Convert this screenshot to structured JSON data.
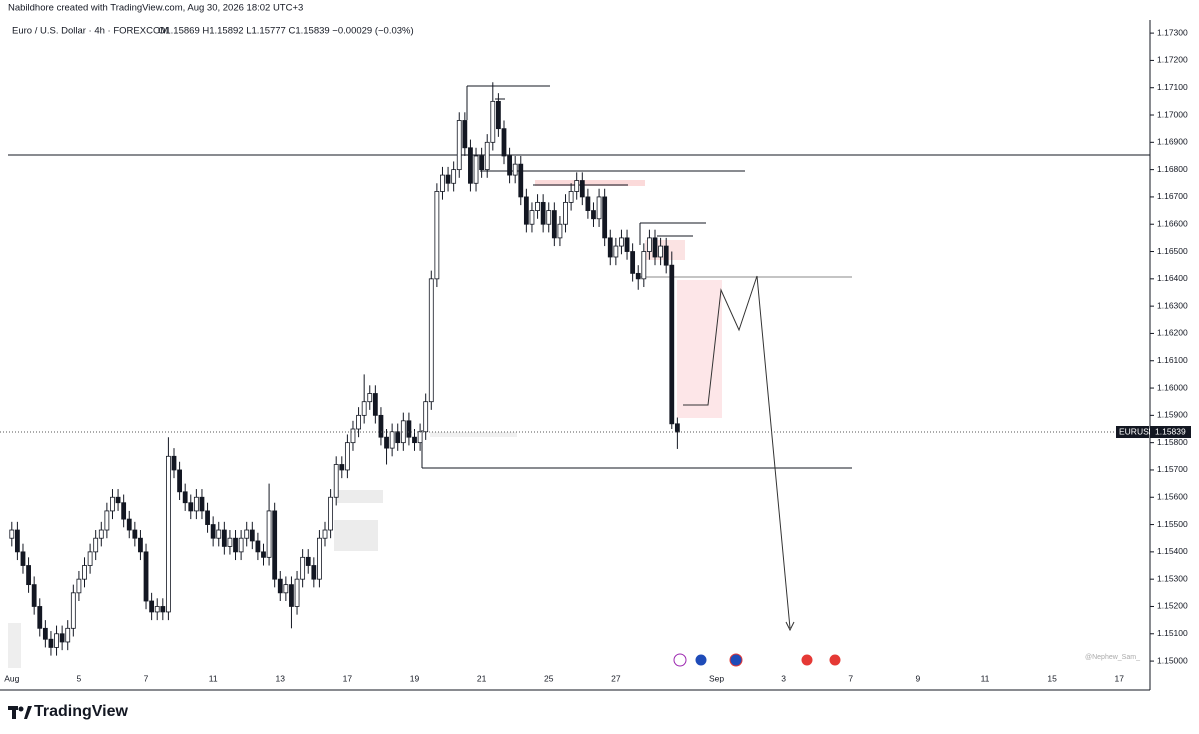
{
  "chart_data": {
    "type": "candlestick",
    "credit": "Nabildhore created with TradingView.com, Aug 30, 2026 18:02 UTC+3",
    "title": "Euro / U.S. Dollar · 4h · FOREXCOM",
    "subtitle": "O1.15869 H1.15892 L1.15777 C1.15839 −0.00029 (−0.03%)",
    "watermark": "@Nephew_Sam_",
    "brand": "TradingView",
    "symbol": "EURUSD",
    "last_price": 1.15839,
    "up_color": "#ffffff",
    "down_color": "#131722",
    "border_color": "#131722",
    "ylim": [
      1.1496,
      1.17348
    ],
    "yticks": [
      {
        "value": 1.15,
        "label": "1.15000"
      },
      {
        "value": 1.151,
        "label": "1.15100"
      },
      {
        "value": 1.152,
        "label": "1.15200"
      },
      {
        "value": 1.153,
        "label": "1.15300"
      },
      {
        "value": 1.154,
        "label": "1.15400"
      },
      {
        "value": 1.155,
        "label": "1.15500"
      },
      {
        "value": 1.156,
        "label": "1.15600"
      },
      {
        "value": 1.157,
        "label": "1.15700"
      },
      {
        "value": 1.158,
        "label": "1.15800"
      },
      {
        "value": 1.159,
        "label": "1.15900"
      },
      {
        "value": 1.16,
        "label": "1.16000"
      },
      {
        "value": 1.161,
        "label": "1.16100"
      },
      {
        "value": 1.162,
        "label": "1.16200"
      },
      {
        "value": 1.163,
        "label": "1.16300"
      },
      {
        "value": 1.164,
        "label": "1.16400"
      },
      {
        "value": 1.165,
        "label": "1.16500"
      },
      {
        "value": 1.166,
        "label": "1.16600"
      },
      {
        "value": 1.167,
        "label": "1.16700"
      },
      {
        "value": 1.168,
        "label": "1.16800"
      },
      {
        "value": 1.169,
        "label": "1.16900"
      },
      {
        "value": 1.17,
        "label": "1.17000"
      },
      {
        "value": 1.171,
        "label": "1.17100"
      },
      {
        "value": 1.172,
        "label": "1.17200"
      },
      {
        "value": 1.173,
        "label": "1.17300"
      }
    ],
    "categories": [
      "Aug",
      null,
      null,
      null,
      null,
      null,
      null,
      null,
      null,
      null,
      null,
      null,
      "5",
      null,
      null,
      null,
      null,
      null,
      null,
      null,
      null,
      null,
      null,
      null,
      "7",
      null,
      null,
      null,
      null,
      null,
      null,
      null,
      null,
      null,
      null,
      null,
      "11",
      null,
      null,
      null,
      null,
      null,
      null,
      null,
      null,
      null,
      null,
      null,
      "13",
      null,
      null,
      null,
      null,
      null,
      null,
      null,
      null,
      null,
      null,
      null,
      "17",
      null,
      null,
      null,
      null,
      null,
      null,
      null,
      null,
      null,
      null,
      null,
      "19",
      null,
      null,
      null,
      null,
      null,
      null,
      null,
      null,
      null,
      null,
      null,
      "21",
      null,
      null,
      null,
      null,
      null,
      null,
      null,
      null,
      null,
      null,
      null,
      "25",
      null,
      null,
      null,
      null,
      null,
      null,
      null,
      null,
      null,
      null,
      null,
      "27",
      null,
      null,
      null,
      null,
      null,
      null,
      null,
      null,
      null,
      null,
      null,
      null,
      null,
      null,
      null,
      null,
      null,
      "Sep",
      null,
      null,
      null,
      null,
      null,
      null,
      null,
      null,
      null,
      null,
      null,
      "3",
      null,
      null,
      null,
      null,
      null,
      null,
      null,
      null,
      null,
      null,
      null,
      "7",
      null,
      null,
      null,
      null,
      null,
      null,
      null,
      null,
      null,
      null,
      null,
      "9",
      null,
      null,
      null,
      null,
      null,
      null,
      null,
      null,
      null,
      null,
      null,
      "11",
      null,
      null,
      null,
      null,
      null,
      null,
      null,
      null,
      null,
      null,
      null,
      "15",
      null,
      null,
      null,
      null,
      null,
      null,
      null,
      null,
      null,
      null,
      null,
      "17",
      null,
      null,
      null,
      null,
      null
    ],
    "candles": [
      [
        1.1545,
        1.1551,
        1.1542,
        1.1548
      ],
      [
        1.1548,
        1.1551,
        1.1537,
        1.154
      ],
      [
        1.154,
        1.1543,
        1.1532,
        1.1535
      ],
      [
        1.1535,
        1.1538,
        1.1525,
        1.1528
      ],
      [
        1.1528,
        1.1531,
        1.1517,
        1.152
      ],
      [
        1.152,
        1.1523,
        1.1509,
        1.1512
      ],
      [
        1.1512,
        1.1515,
        1.1505,
        1.1508
      ],
      [
        1.1508,
        1.1511,
        1.1502,
        1.1505
      ],
      [
        1.1505,
        1.1513,
        1.1502,
        1.151
      ],
      [
        1.151,
        1.1513,
        1.1504,
        1.1507
      ],
      [
        1.1507,
        1.1515,
        1.1504,
        1.1512
      ],
      [
        1.1512,
        1.1528,
        1.1509,
        1.1525
      ],
      [
        1.1525,
        1.1533,
        1.1522,
        1.153
      ],
      [
        1.153,
        1.1538,
        1.1527,
        1.1535
      ],
      [
        1.1535,
        1.1543,
        1.1532,
        1.154
      ],
      [
        1.154,
        1.1548,
        1.1537,
        1.1545
      ],
      [
        1.1545,
        1.1551,
        1.1542,
        1.1548
      ],
      [
        1.1548,
        1.1558,
        1.1545,
        1.1555
      ],
      [
        1.1555,
        1.1563,
        1.1552,
        1.156
      ],
      [
        1.156,
        1.1563,
        1.1555,
        1.1558
      ],
      [
        1.1558,
        1.1561,
        1.1549,
        1.1552
      ],
      [
        1.1552,
        1.1555,
        1.1545,
        1.1548
      ],
      [
        1.1548,
        1.1551,
        1.1542,
        1.1545
      ],
      [
        1.1545,
        1.1548,
        1.1537,
        1.154
      ],
      [
        1.154,
        1.1543,
        1.1519,
        1.1522
      ],
      [
        1.1522,
        1.1525,
        1.1515,
        1.1518
      ],
      [
        1.1518,
        1.1523,
        1.1515,
        1.152
      ],
      [
        1.152,
        1.1523,
        1.1515,
        1.1518
      ],
      [
        1.1518,
        1.1582,
        1.1515,
        1.1575
      ],
      [
        1.1575,
        1.1578,
        1.1567,
        1.157
      ],
      [
        1.157,
        1.1573,
        1.1559,
        1.1562
      ],
      [
        1.1562,
        1.1565,
        1.1555,
        1.1558
      ],
      [
        1.1558,
        1.1561,
        1.1552,
        1.1555
      ],
      [
        1.1555,
        1.1563,
        1.1552,
        1.156
      ],
      [
        1.156,
        1.1563,
        1.1552,
        1.1555
      ],
      [
        1.1555,
        1.1558,
        1.1547,
        1.155
      ],
      [
        1.155,
        1.1553,
        1.1542,
        1.1545
      ],
      [
        1.1545,
        1.1551,
        1.1542,
        1.1548
      ],
      [
        1.1548,
        1.1551,
        1.1539,
        1.1542
      ],
      [
        1.1542,
        1.1548,
        1.1539,
        1.1545
      ],
      [
        1.1545,
        1.1548,
        1.1537,
        1.154
      ],
      [
        1.154,
        1.1548,
        1.1537,
        1.1545
      ],
      [
        1.1545,
        1.1551,
        1.1542,
        1.1548
      ],
      [
        1.1548,
        1.1551,
        1.1541,
        1.1544
      ],
      [
        1.1544,
        1.1547,
        1.1537,
        1.154
      ],
      [
        1.154,
        1.1543,
        1.1535,
        1.1538
      ],
      [
        1.1538,
        1.1565,
        1.1535,
        1.1555
      ],
      [
        1.1555,
        1.1558,
        1.1527,
        1.153
      ],
      [
        1.153,
        1.1533,
        1.1522,
        1.1525
      ],
      [
        1.1525,
        1.1531,
        1.1522,
        1.1528
      ],
      [
        1.1528,
        1.1531,
        1.1512,
        1.152
      ],
      [
        1.152,
        1.1533,
        1.1517,
        1.153
      ],
      [
        1.153,
        1.1541,
        1.1527,
        1.1538
      ],
      [
        1.1538,
        1.1541,
        1.1532,
        1.1535
      ],
      [
        1.1535,
        1.1538,
        1.1527,
        1.153
      ],
      [
        1.153,
        1.1548,
        1.1527,
        1.1545
      ],
      [
        1.1545,
        1.1551,
        1.1542,
        1.1548
      ],
      [
        1.1548,
        1.1563,
        1.1545,
        1.156
      ],
      [
        1.156,
        1.1575,
        1.1557,
        1.1572
      ],
      [
        1.1572,
        1.1575,
        1.1567,
        1.157
      ],
      [
        1.157,
        1.1583,
        1.1567,
        1.158
      ],
      [
        1.158,
        1.1588,
        1.1577,
        1.1585
      ],
      [
        1.1585,
        1.1593,
        1.1582,
        1.159
      ],
      [
        1.159,
        1.1605,
        1.1587,
        1.1595
      ],
      [
        1.1595,
        1.1601,
        1.1592,
        1.1598
      ],
      [
        1.1598,
        1.1601,
        1.1587,
        1.159
      ],
      [
        1.159,
        1.1593,
        1.1579,
        1.1582
      ],
      [
        1.1582,
        1.1585,
        1.1572,
        1.1578
      ],
      [
        1.1578,
        1.1587,
        1.1575,
        1.1584
      ],
      [
        1.1584,
        1.1587,
        1.1577,
        1.158
      ],
      [
        1.158,
        1.1591,
        1.1577,
        1.1588
      ],
      [
        1.1588,
        1.1591,
        1.1579,
        1.1582
      ],
      [
        1.1582,
        1.1585,
        1.1577,
        1.158
      ],
      [
        1.158,
        1.1587,
        1.1577,
        1.1584
      ],
      [
        1.1584,
        1.1598,
        1.1581,
        1.1595
      ],
      [
        1.1595,
        1.1643,
        1.1592,
        1.164
      ],
      [
        1.164,
        1.1675,
        1.1637,
        1.1672
      ],
      [
        1.1672,
        1.1681,
        1.1669,
        1.1678
      ],
      [
        1.1678,
        1.1681,
        1.1672,
        1.1675
      ],
      [
        1.1675,
        1.1683,
        1.1672,
        1.168
      ],
      [
        1.168,
        1.1701,
        1.1677,
        1.1698
      ],
      [
        1.1698,
        1.1701,
        1.1685,
        1.1688
      ],
      [
        1.1688,
        1.1691,
        1.1672,
        1.1675
      ],
      [
        1.1675,
        1.1688,
        1.1672,
        1.1685
      ],
      [
        1.1685,
        1.1688,
        1.1677,
        1.168
      ],
      [
        1.168,
        1.1693,
        1.1677,
        1.169
      ],
      [
        1.169,
        1.1712,
        1.1687,
        1.1705
      ],
      [
        1.1705,
        1.1708,
        1.1692,
        1.1695
      ],
      [
        1.1695,
        1.1698,
        1.1682,
        1.1685
      ],
      [
        1.1685,
        1.1688,
        1.1675,
        1.1678
      ],
      [
        1.1678,
        1.1685,
        1.1675,
        1.1682
      ],
      [
        1.1682,
        1.1685,
        1.1667,
        1.167
      ],
      [
        1.167,
        1.1673,
        1.1657,
        1.166
      ],
      [
        1.166,
        1.1668,
        1.1657,
        1.1665
      ],
      [
        1.1665,
        1.1671,
        1.1662,
        1.1668
      ],
      [
        1.1668,
        1.1671,
        1.1657,
        1.166
      ],
      [
        1.166,
        1.1668,
        1.1657,
        1.1665
      ],
      [
        1.1665,
        1.1668,
        1.1652,
        1.1655
      ],
      [
        1.1655,
        1.1663,
        1.1652,
        1.166
      ],
      [
        1.166,
        1.1671,
        1.1657,
        1.1668
      ],
      [
        1.1668,
        1.1675,
        1.1665,
        1.1672
      ],
      [
        1.1672,
        1.1679,
        1.1669,
        1.1676
      ],
      [
        1.1676,
        1.1679,
        1.1667,
        1.167
      ],
      [
        1.167,
        1.1673,
        1.1662,
        1.1665
      ],
      [
        1.1665,
        1.1668,
        1.1659,
        1.1662
      ],
      [
        1.1662,
        1.1673,
        1.1659,
        1.167
      ],
      [
        1.167,
        1.1673,
        1.1652,
        1.1655
      ],
      [
        1.1655,
        1.1658,
        1.1645,
        1.1648
      ],
      [
        1.1648,
        1.1655,
        1.1645,
        1.1652
      ],
      [
        1.1652,
        1.1658,
        1.1649,
        1.1655
      ],
      [
        1.1655,
        1.1658,
        1.1647,
        1.165
      ],
      [
        1.165,
        1.1653,
        1.1639,
        1.1642
      ],
      [
        1.1642,
        1.1645,
        1.1636,
        1.164
      ],
      [
        1.164,
        1.1653,
        1.1637,
        1.165
      ],
      [
        1.165,
        1.1658,
        1.1647,
        1.1655
      ],
      [
        1.1655,
        1.1658,
        1.1645,
        1.1648
      ],
      [
        1.1648,
        1.1655,
        1.1645,
        1.1652
      ],
      [
        1.1652,
        1.1655,
        1.1642,
        1.1645
      ],
      [
        1.1645,
        1.165,
        1.1585,
        1.15869
      ],
      [
        1.15869,
        1.15892,
        1.15777,
        1.15839
      ],
      null,
      null,
      null,
      null,
      null,
      null,
      null,
      null,
      null,
      null,
      null,
      null,
      null,
      null,
      null,
      null,
      null,
      null,
      null,
      null,
      null,
      null,
      null,
      null,
      null,
      null,
      null,
      null,
      null,
      null,
      null,
      null,
      null,
      null,
      null,
      null,
      null,
      null,
      null,
      null,
      null,
      null,
      null,
      null,
      null,
      null,
      null,
      null,
      null,
      null,
      null,
      null,
      null,
      null,
      null,
      null,
      null,
      null,
      null,
      null,
      null,
      null,
      null,
      null,
      null,
      null,
      null,
      null,
      null,
      null,
      null,
      null,
      null,
      null,
      null,
      null,
      null,
      null,
      null,
      null,
      null,
      null,
      null,
      null
    ]
  }
}
